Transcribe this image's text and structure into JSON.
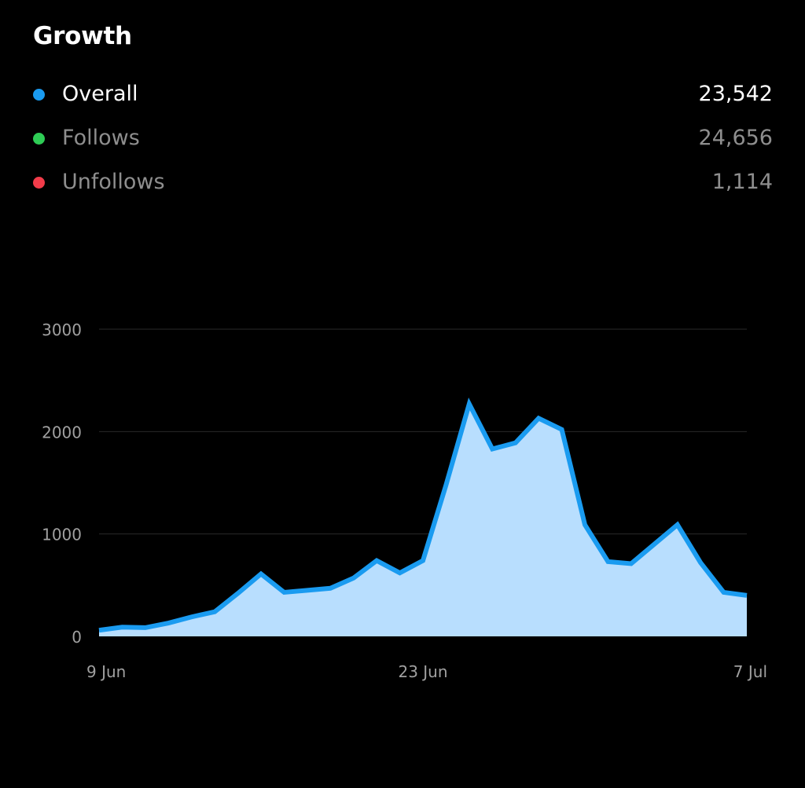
{
  "title": "Growth",
  "legend": [
    {
      "label": "Overall",
      "value": "23,542",
      "color": "#1a9bf0",
      "active": true
    },
    {
      "label": "Follows",
      "value": "24,656",
      "color": "#2ecc55",
      "active": false
    },
    {
      "label": "Unfollows",
      "value": "1,114",
      "color": "#f23c4a",
      "active": false
    }
  ],
  "chart_data": {
    "type": "area",
    "xlabel": "",
    "ylabel": "",
    "x_ticks": [
      "9 Jun",
      "23 Jun",
      "7 Jul"
    ],
    "y_ticks": [
      0,
      1000,
      2000,
      3000
    ],
    "ylim": [
      0,
      3000
    ],
    "grid": true,
    "line_color": "#1a9bf0",
    "fill_color": "#b8defe",
    "series": [
      {
        "name": "Overall",
        "x": [
          "9 Jun",
          "10 Jun",
          "11 Jun",
          "12 Jun",
          "13 Jun",
          "14 Jun",
          "15 Jun",
          "16 Jun",
          "17 Jun",
          "18 Jun",
          "19 Jun",
          "20 Jun",
          "21 Jun",
          "22 Jun",
          "23 Jun",
          "24 Jun",
          "25 Jun",
          "26 Jun",
          "27 Jun",
          "28 Jun",
          "29 Jun",
          "30 Jun",
          "1 Jul",
          "2 Jul",
          "3 Jul",
          "4 Jul",
          "5 Jul",
          "6 Jul",
          "7 Jul"
        ],
        "values": [
          60,
          90,
          85,
          130,
          190,
          240,
          420,
          610,
          430,
          450,
          470,
          570,
          740,
          620,
          740,
          1480,
          2270,
          1830,
          1890,
          2130,
          2020,
          1090,
          730,
          710,
          900,
          1090,
          720,
          430,
          400
        ]
      }
    ]
  }
}
